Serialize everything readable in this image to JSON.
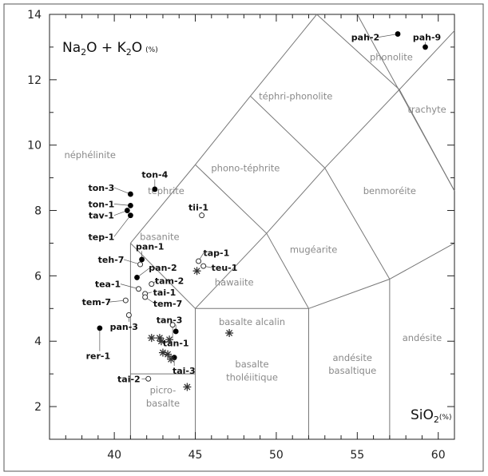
{
  "chart_data": {
    "type": "scatter",
    "x_axis": {
      "range": [
        36,
        61
      ],
      "ticks": [
        40,
        45,
        50,
        55,
        60
      ],
      "label_main": "SiO",
      "label_sub": "2",
      "label_unit": "(%)"
    },
    "y_axis": {
      "range": [
        1,
        14
      ],
      "ticks": [
        2,
        4,
        6,
        8,
        10,
        12,
        14
      ],
      "label_main_1": "Na",
      "label_sub_1": "2",
      "label_mid": "O + K",
      "label_sub_2": "2",
      "label_end": "O",
      "label_unit": "(%)"
    },
    "grid": false,
    "field_boundaries": [
      [
        [
          41,
          0
        ],
        [
          41,
          7
        ]
      ],
      [
        [
          41,
          7
        ],
        [
          45,
          9.4
        ]
      ],
      [
        [
          45,
          9.4
        ],
        [
          48.4,
          11.5
        ]
      ],
      [
        [
          48.4,
          11.5
        ],
        [
          52.5,
          14
        ]
      ],
      [
        [
          41,
          3
        ],
        [
          45,
          3
        ]
      ],
      [
        [
          45,
          0
        ],
        [
          45,
          5
        ]
      ],
      [
        [
          45,
          5
        ],
        [
          52,
          5
        ]
      ],
      [
        [
          52,
          0
        ],
        [
          52,
          5
        ]
      ],
      [
        [
          45,
          5
        ],
        [
          49.4,
          7.3
        ]
      ],
      [
        [
          49.4,
          7.3
        ],
        [
          53,
          9.3
        ]
      ],
      [
        [
          53,
          9.3
        ],
        [
          57.6,
          11.7
        ]
      ],
      [
        [
          57,
          0
        ],
        [
          57,
          5.9
        ]
      ],
      [
        [
          52,
          5
        ],
        [
          57,
          5.9
        ]
      ],
      [
        [
          57,
          5.9
        ],
        [
          63,
          7
        ]
      ],
      [
        [
          41,
          7
        ],
        [
          45,
          5
        ]
      ],
      [
        [
          45,
          9.4
        ],
        [
          49.4,
          7.3
        ]
      ],
      [
        [
          48.4,
          11.5
        ],
        [
          53,
          9.3
        ]
      ],
      [
        [
          52.5,
          14
        ],
        [
          57.6,
          11.7
        ]
      ],
      [
        [
          57.6,
          11.7
        ],
        [
          61,
          8.6
        ]
      ],
      [
        [
          49.4,
          7.3
        ],
        [
          52,
          5
        ]
      ],
      [
        [
          53,
          9.3
        ],
        [
          57,
          5.9
        ]
      ],
      [
        [
          57.6,
          11.7
        ],
        [
          61,
          13.5
        ]
      ],
      [
        [
          55,
          14
        ],
        [
          61,
          8.6
        ]
      ]
    ],
    "field_labels": [
      {
        "text": "phonolite",
        "x": 57.1,
        "y": 12.6
      },
      {
        "text": "téphri-phonolite",
        "x": 51.2,
        "y": 11.4
      },
      {
        "text": "trachyte",
        "x": 59.3,
        "y": 11.0
      },
      {
        "text": "néphélinite",
        "x": 38.5,
        "y": 9.6
      },
      {
        "text": "phono-téphrite",
        "x": 48.1,
        "y": 9.2
      },
      {
        "text": "benmoréite",
        "x": 57.0,
        "y": 8.5
      },
      {
        "text": "téphrite",
        "x": 43.2,
        "y": 8.5
      },
      {
        "text": "basanite",
        "x": 42.8,
        "y": 7.1
      },
      {
        "text": "mugéarite",
        "x": 52.3,
        "y": 6.7
      },
      {
        "text": "hawaiite",
        "x": 47.4,
        "y": 5.7
      },
      {
        "text": "basalte alcalin",
        "x": 48.5,
        "y": 4.5
      },
      {
        "text": "andésite",
        "x": 59.0,
        "y": 4.0
      },
      {
        "text": "andésite",
        "x": 54.7,
        "y": 3.4
      },
      {
        "text": "basaltique",
        "x": 54.7,
        "y": 3.0
      },
      {
        "text": "basalte",
        "x": 48.5,
        "y": 3.2
      },
      {
        "text": "tholéiitique",
        "x": 48.5,
        "y": 2.8
      },
      {
        "text": "picro-",
        "x": 43.0,
        "y": 2.4
      },
      {
        "text": "basalte",
        "x": 43.0,
        "y": 2.0
      }
    ],
    "series": [
      {
        "marker": "filled",
        "points": [
          {
            "label": "pah-2",
            "x": 57.5,
            "y": 13.4
          },
          {
            "label": "pah-9",
            "x": 59.2,
            "y": 13.0
          },
          {
            "label": "ton-4",
            "x": 42.5,
            "y": 8.65
          },
          {
            "label": "ton-3",
            "x": 41.0,
            "y": 8.5
          },
          {
            "label": "ton-1",
            "x": 41.0,
            "y": 8.15
          },
          {
            "label": "tav-1",
            "x": 40.8,
            "y": 8.0
          },
          {
            "label": "tep-1",
            "x": 41.0,
            "y": 7.85
          },
          {
            "label": "pan-1",
            "x": 41.7,
            "y": 6.5
          },
          {
            "label": "pan-2",
            "x": 41.4,
            "y": 5.95
          },
          {
            "label": "rer-1",
            "x": 39.1,
            "y": 4.4
          },
          {
            "label": "tan-3",
            "x": 43.8,
            "y": 4.3
          },
          {
            "label": "tai-3",
            "x": 43.7,
            "y": 3.5
          }
        ]
      },
      {
        "marker": "open",
        "points": [
          {
            "label": "tii-1",
            "x": 45.4,
            "y": 7.85
          },
          {
            "label": "tap-1",
            "x": 45.2,
            "y": 6.45
          },
          {
            "label": "teu-1",
            "x": 45.5,
            "y": 6.3
          },
          {
            "label": "teh-7",
            "x": 41.6,
            "y": 6.35
          },
          {
            "label": "tam-2",
            "x": 42.3,
            "y": 5.75
          },
          {
            "label": "tea-1",
            "x": 41.5,
            "y": 5.6
          },
          {
            "label": "tai-1",
            "x": 41.9,
            "y": 5.45
          },
          {
            "label": "tem-7",
            "x": 41.9,
            "y": 5.35
          },
          {
            "label": "tem-7",
            "x": 40.7,
            "y": 5.25
          },
          {
            "label": "pan-3",
            "x": 40.9,
            "y": 4.8
          },
          {
            "label": "tan-1",
            "x": 43.6,
            "y": 4.5
          },
          {
            "label": "tai-2",
            "x": 42.1,
            "y": 2.85
          }
        ]
      },
      {
        "marker": "asterisk",
        "points": [
          {
            "x": 45.1,
            "y": 6.15
          },
          {
            "x": 42.3,
            "y": 4.1
          },
          {
            "x": 42.8,
            "y": 4.1
          },
          {
            "x": 42.9,
            "y": 4.0
          },
          {
            "x": 43.4,
            "y": 4.05
          },
          {
            "x": 43.0,
            "y": 3.65
          },
          {
            "x": 43.3,
            "y": 3.6
          },
          {
            "x": 43.5,
            "y": 3.45
          },
          {
            "x": 47.1,
            "y": 4.25
          },
          {
            "x": 44.5,
            "y": 2.6
          }
        ]
      }
    ],
    "point_labels": [
      {
        "text": "pah-2",
        "x": 55.5,
        "y": 13.3
      },
      {
        "text": "pah-9",
        "x": 59.3,
        "y": 13.3
      },
      {
        "text": "ton-4",
        "x": 42.5,
        "y": 9.1
      },
      {
        "text": "ton-3",
        "x": 39.2,
        "y": 8.7
      },
      {
        "text": "ton-1",
        "x": 39.2,
        "y": 8.2
      },
      {
        "text": "tav-1",
        "x": 39.2,
        "y": 7.85
      },
      {
        "text": "tep-1",
        "x": 39.2,
        "y": 7.2
      },
      {
        "text": "tii-1",
        "x": 45.2,
        "y": 8.1
      },
      {
        "text": "pan-1",
        "x": 42.2,
        "y": 6.9
      },
      {
        "text": "tap-1",
        "x": 46.3,
        "y": 6.7
      },
      {
        "text": "teu-1",
        "x": 46.8,
        "y": 6.25
      },
      {
        "text": "teh-7",
        "x": 39.8,
        "y": 6.5
      },
      {
        "text": "pan-2",
        "x": 43.0,
        "y": 6.25
      },
      {
        "text": "tam-2",
        "x": 43.4,
        "y": 5.85
      },
      {
        "text": "tea-1",
        "x": 39.6,
        "y": 5.75
      },
      {
        "text": "tai-1",
        "x": 43.1,
        "y": 5.5
      },
      {
        "text": "tem-7",
        "x": 43.3,
        "y": 5.15
      },
      {
        "text": "tem-7",
        "x": 38.9,
        "y": 5.2
      },
      {
        "text": "pan-3",
        "x": 40.6,
        "y": 4.45
      },
      {
        "text": "tan-3",
        "x": 43.4,
        "y": 4.65
      },
      {
        "text": "rer-1",
        "x": 39.0,
        "y": 3.55
      },
      {
        "text": "tan-1",
        "x": 43.8,
        "y": 3.95
      },
      {
        "text": "tai-3",
        "x": 44.3,
        "y": 3.1
      },
      {
        "text": "tai-2",
        "x": 40.9,
        "y": 2.85
      }
    ]
  }
}
